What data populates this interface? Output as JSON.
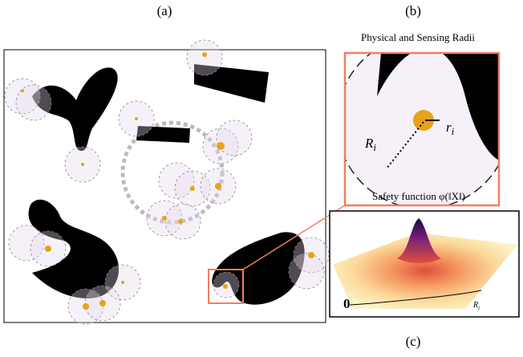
{
  "panels": {
    "a": {
      "label": "(a)"
    },
    "b": {
      "label": "(b)",
      "title": "Physical and Sensing Radii",
      "sensing_radius": {
        "main": "R",
        "sub": "i"
      },
      "physical_radius": {
        "main": "r",
        "sub": "i"
      }
    },
    "c": {
      "label": "(c)",
      "title": "Safety function φ(‖X‖)",
      "origin": "0",
      "radius": {
        "main": "R",
        "sub": "i"
      }
    }
  }
}
